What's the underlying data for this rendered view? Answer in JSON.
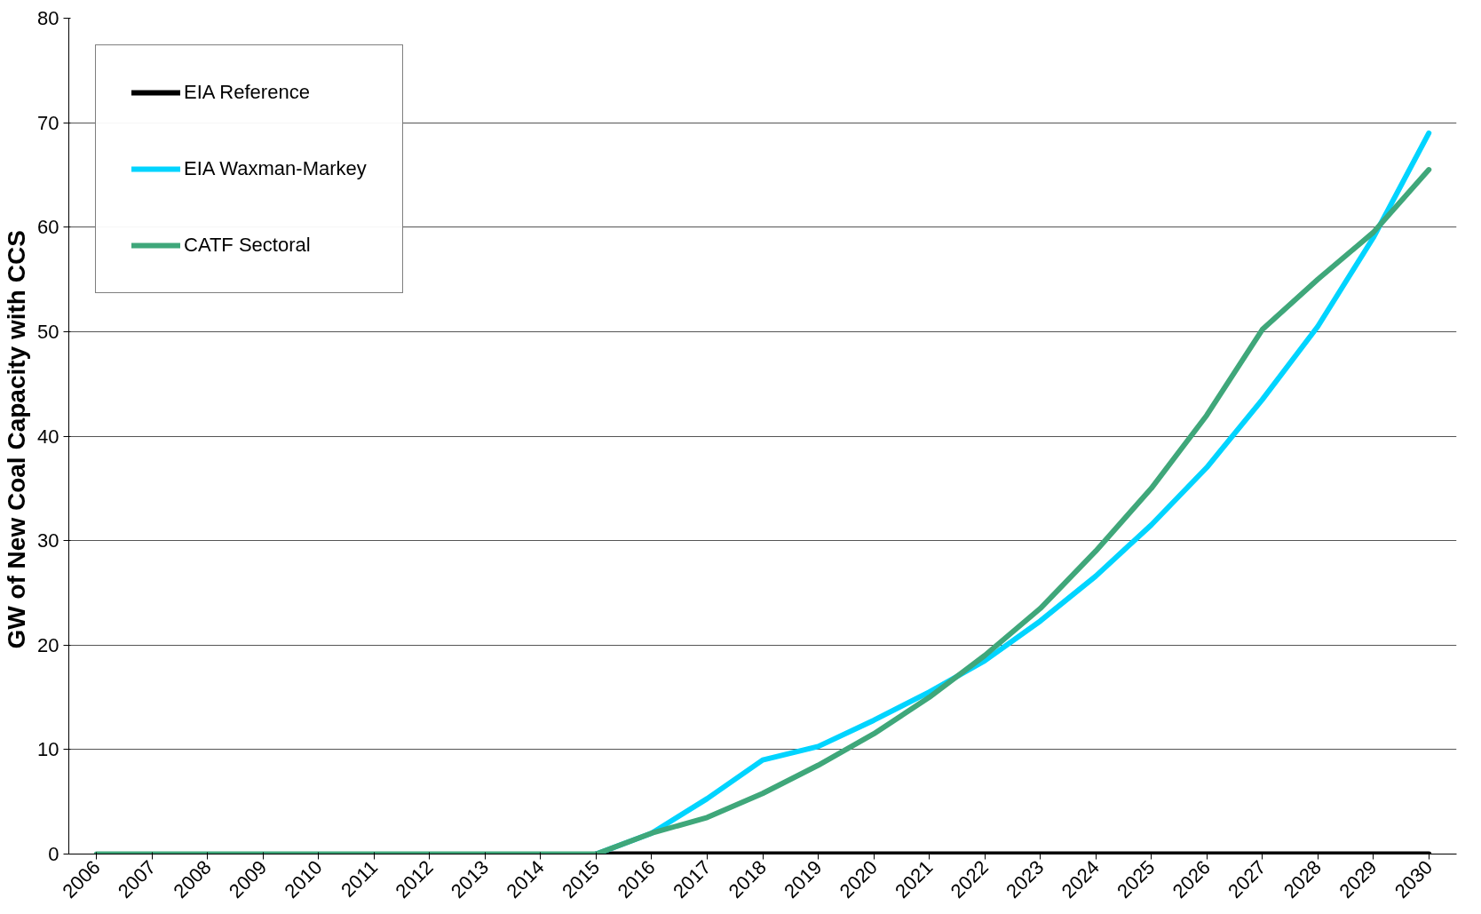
{
  "chart_data": {
    "type": "line",
    "ylabel": "GW of New Coal Capacity  with CCS",
    "categories": [
      "2006",
      "2007",
      "2008",
      "2009",
      "2010",
      "2011",
      "2012",
      "2013",
      "2014",
      "2015",
      "2016",
      "2017",
      "2018",
      "2019",
      "2020",
      "2021",
      "2022",
      "2023",
      "2024",
      "2025",
      "2026",
      "2027",
      "2028",
      "2029",
      "2030"
    ],
    "series": [
      {
        "name": "EIA Reference",
        "color": "#000000",
        "values": [
          null,
          null,
          null,
          null,
          null,
          null,
          null,
          null,
          null,
          0,
          0,
          0,
          0,
          0,
          0,
          0,
          0,
          0,
          0,
          0,
          0,
          0,
          0,
          0,
          0
        ]
      },
      {
        "name": "EIA Waxman-Markey",
        "color": "#00d4ff",
        "values": [
          null,
          null,
          null,
          null,
          null,
          null,
          null,
          null,
          null,
          0,
          2,
          5.3,
          9,
          10.3,
          12.8,
          15.5,
          18.5,
          22.3,
          26.6,
          31.5,
          37,
          43.5,
          50.5,
          59,
          69
        ]
      },
      {
        "name": "CATF Sectoral",
        "color": "#3fa77a",
        "values": [
          0,
          0,
          0,
          0,
          0,
          0,
          0,
          0,
          0,
          0,
          2,
          3.5,
          5.8,
          8.5,
          11.5,
          15,
          19,
          23.5,
          29,
          35,
          42,
          50.2,
          55,
          59.5,
          65.5
        ]
      }
    ],
    "ylim": [
      0,
      80
    ],
    "yticks": [
      0,
      10,
      20,
      30,
      40,
      50,
      60,
      70,
      80
    ],
    "grid": "y",
    "legend": "top left",
    "marker": "none",
    "line_style": "solid"
  }
}
